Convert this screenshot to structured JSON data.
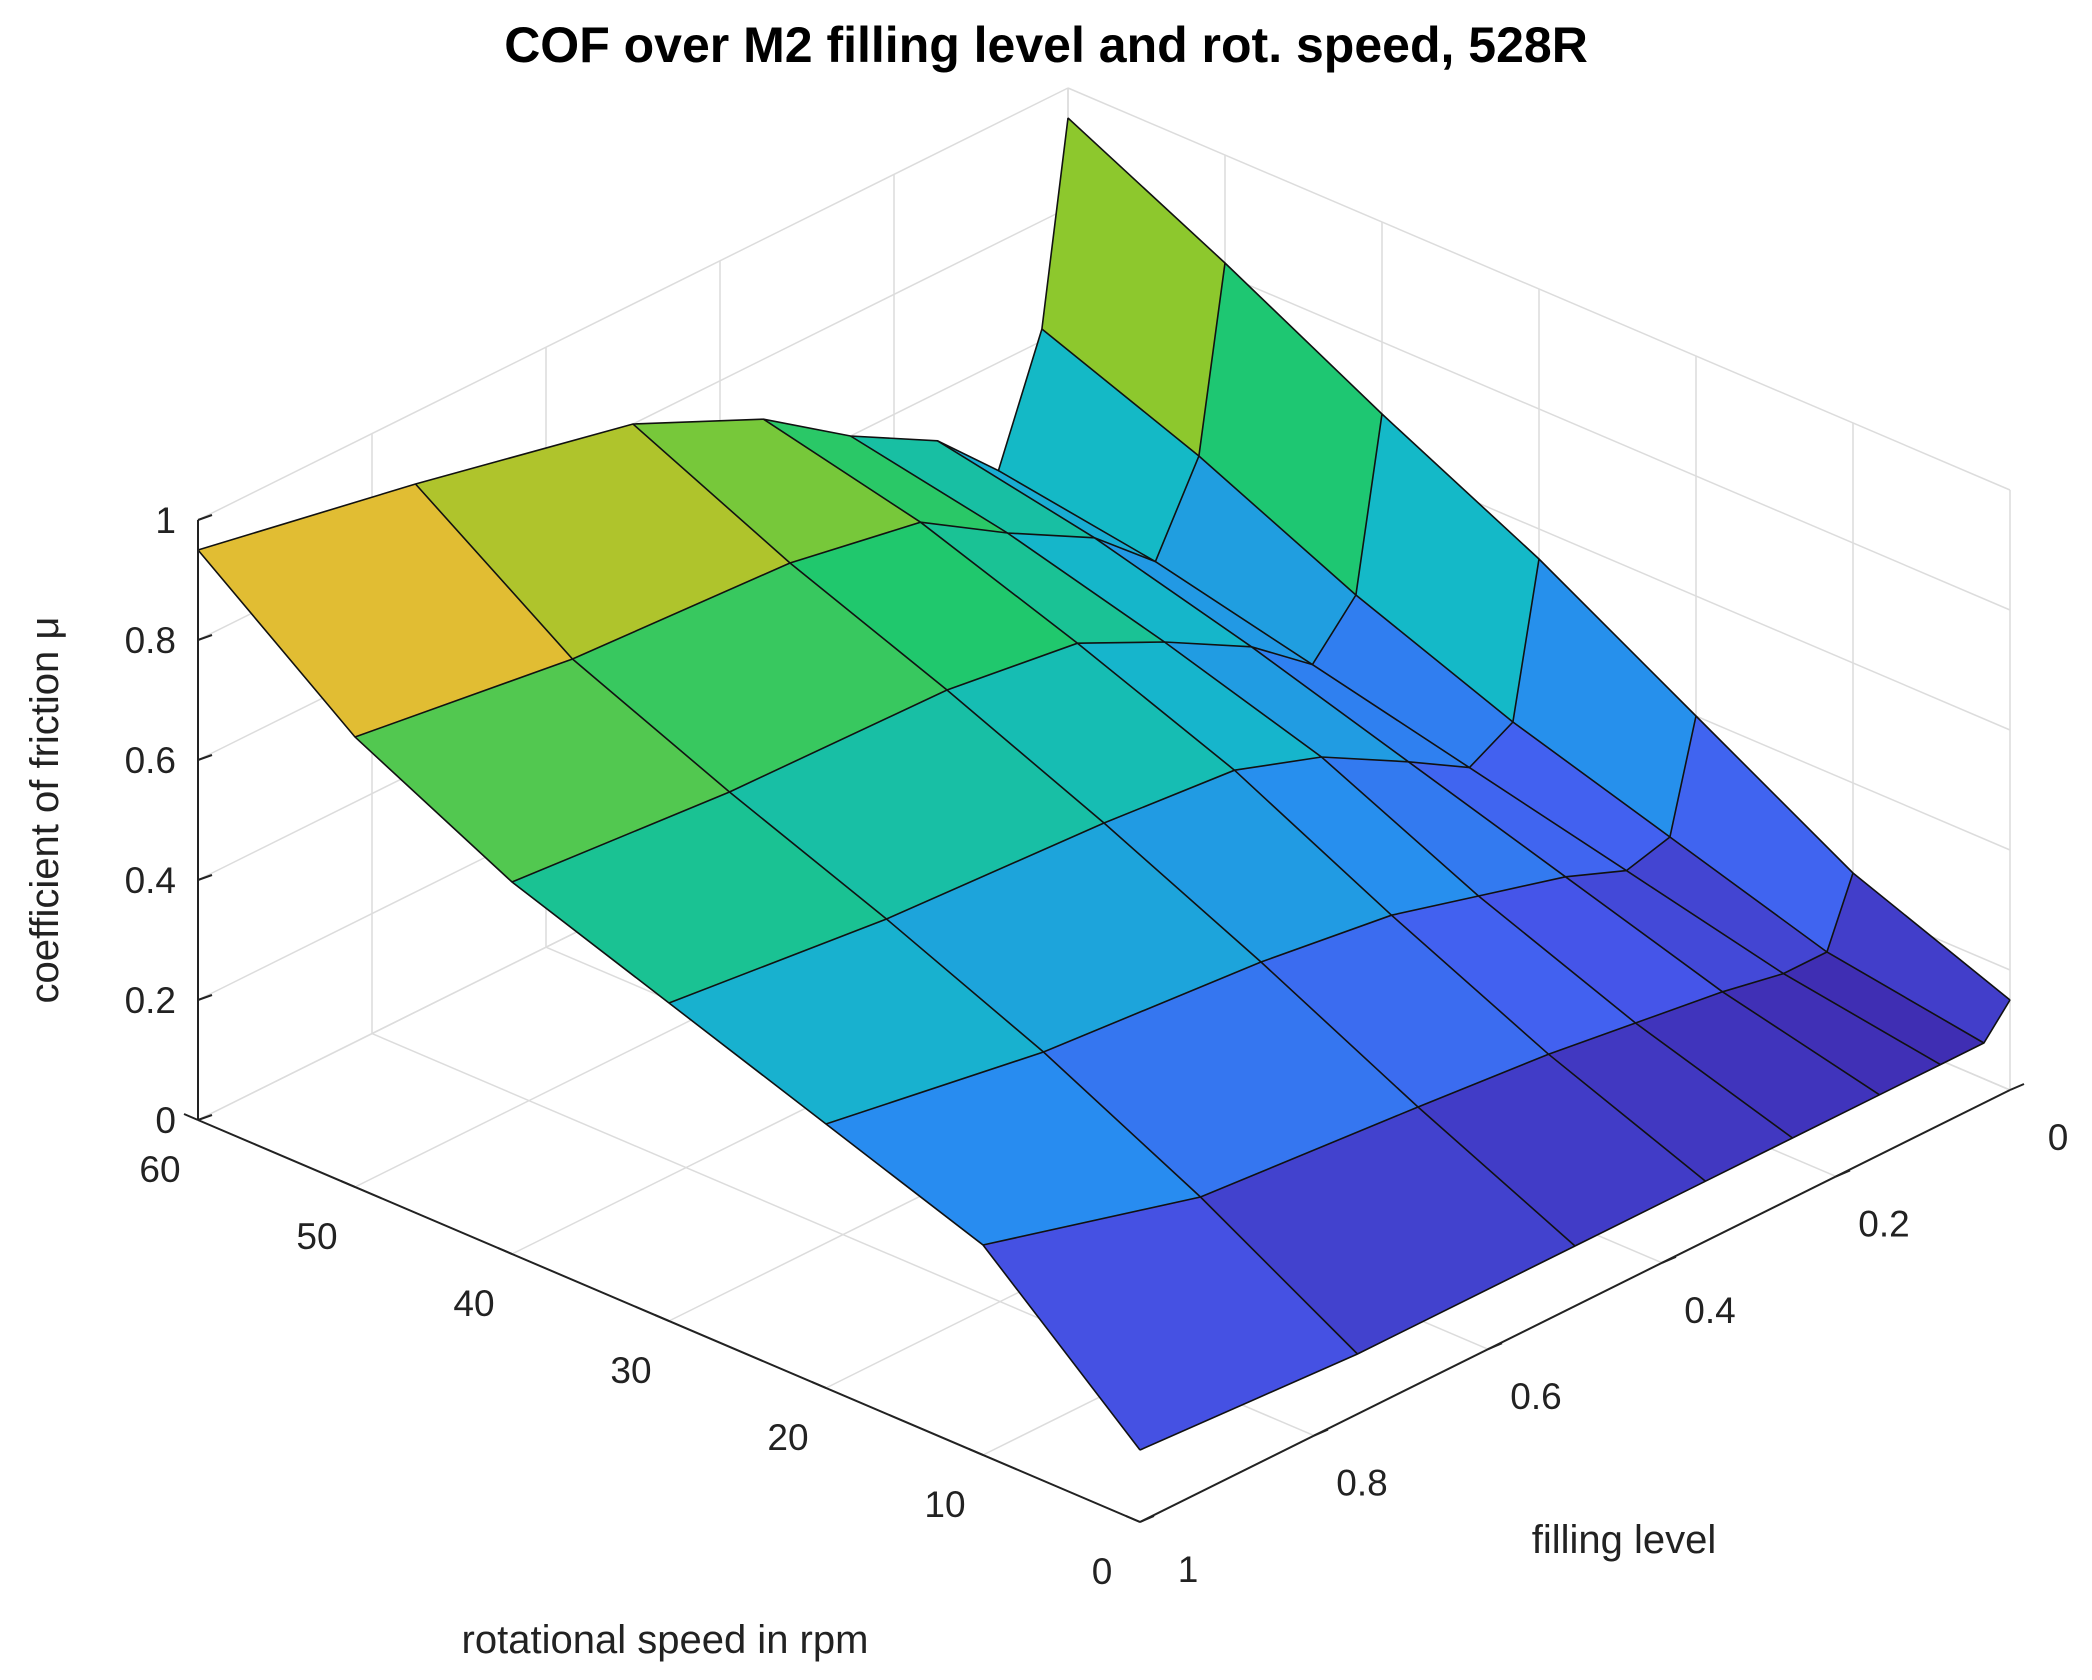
{
  "chart_data": {
    "type": "surface",
    "title": "COF over M2 filling level and rot. speed, 528R",
    "xlabel": "filling level",
    "ylabel": "rotational speed in rpm",
    "zlabel": "coefficient of friction μ",
    "xlim": [
      0,
      1
    ],
    "ylim": [
      0,
      60
    ],
    "zlim": [
      0,
      1
    ],
    "xticks": [
      "0",
      "0.2",
      "0.4",
      "0.6",
      "0.8",
      "1"
    ],
    "yticks": [
      "0",
      "10",
      "20",
      "30",
      "40",
      "50",
      "60"
    ],
    "zticks": [
      "0",
      "0.2",
      "0.4",
      "0.6",
      "0.8",
      "1"
    ],
    "colormap": "parula",
    "filling_level": [
      1.0,
      0.75,
      0.5,
      0.35,
      0.25,
      0.15,
      0.08,
      0.03,
      0.0
    ],
    "rotational_speed": [
      0,
      10,
      20,
      30,
      40,
      50,
      60
    ],
    "cof": [
      [
        0.12,
        0.35,
        0.44,
        0.53,
        0.62,
        0.75,
        0.95
      ],
      [
        0.1,
        0.25,
        0.38,
        0.49,
        0.59,
        0.7,
        0.88
      ],
      [
        0.1,
        0.22,
        0.35,
        0.47,
        0.58,
        0.68,
        0.8
      ],
      [
        0.1,
        0.2,
        0.32,
        0.45,
        0.55,
        0.64,
        0.7
      ],
      [
        0.1,
        0.18,
        0.28,
        0.4,
        0.48,
        0.55,
        0.6
      ],
      [
        0.1,
        0.16,
        0.24,
        0.32,
        0.4,
        0.47,
        0.52
      ],
      [
        0.1,
        0.14,
        0.2,
        0.26,
        0.32,
        0.38,
        0.42
      ],
      [
        0.1,
        0.14,
        0.22,
        0.3,
        0.4,
        0.52,
        0.62
      ],
      [
        0.15,
        0.25,
        0.4,
        0.55,
        0.68,
        0.82,
        0.95
      ]
    ]
  }
}
